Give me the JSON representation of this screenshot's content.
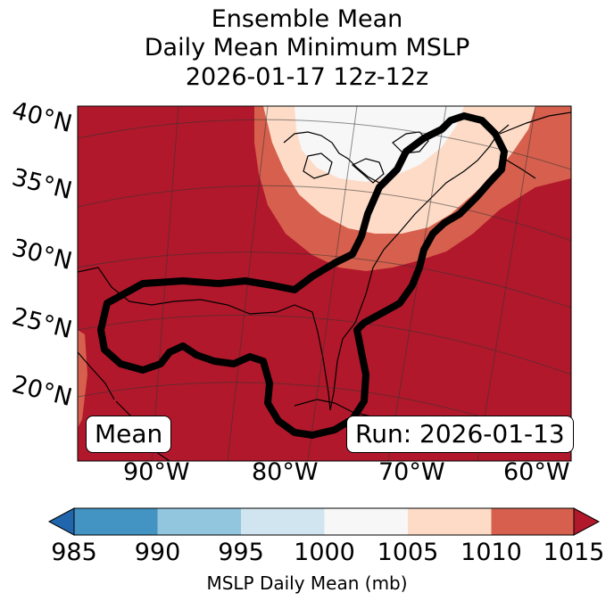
{
  "title": {
    "line1": "Ensemble Mean",
    "line2": "Daily Mean Minimum MSLP",
    "line3": "2026-01-17 12z-12z"
  },
  "map": {
    "lat_labels": [
      "40°N",
      "35°N",
      "30°N",
      "25°N",
      "20°N"
    ],
    "lon_labels": [
      "90°W",
      "80°W",
      "70°W",
      "60°W"
    ],
    "inset_left": "Mean",
    "inset_right": "Run: 2026-01-13",
    "colors": {
      "lt_1010": "#b2182b",
      "1005_1010": "#d6604d",
      "1000_1005": "#fddbc7",
      "995_1000": "#f7f7f7"
    }
  },
  "colorbar": {
    "label": "MSLP Daily Mean (mb)",
    "ticks": [
      "985",
      "990",
      "995",
      "1000",
      "1005",
      "1010",
      "1015"
    ],
    "colors": [
      "#4393c3",
      "#92c5de",
      "#d1e5f0",
      "#f7f7f7",
      "#fddbc7",
      "#d6604d"
    ],
    "under_color": "#2166ac",
    "over_color": "#b2182b"
  }
}
